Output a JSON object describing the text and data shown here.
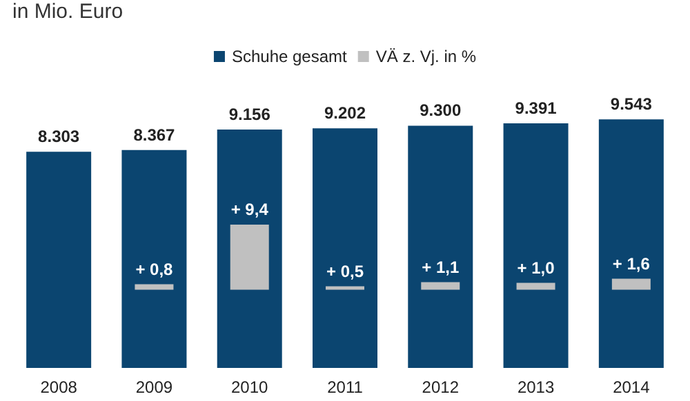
{
  "chart_data": {
    "type": "bar",
    "title": "in Mio. Euro",
    "categories": [
      "2008",
      "2009",
      "2010",
      "2011",
      "2012",
      "2013",
      "2014"
    ],
    "series": [
      {
        "name": "Schuhe gesamt",
        "color": "#0b4570",
        "values": [
          8303,
          8367,
          9156,
          9202,
          9300,
          9391,
          9543
        ],
        "value_labels": [
          "8.303",
          "8.367",
          "9.156",
          "9.202",
          "9.300",
          "9.391",
          "9.543"
        ]
      },
      {
        "name": "VÄ z. Vj. in %",
        "color": "#c0c0c0",
        "axis": "y2",
        "values": [
          null,
          0.8,
          9.4,
          0.5,
          1.1,
          1.0,
          1.6
        ],
        "value_labels": [
          null,
          "+ 0,8",
          "+ 9,4",
          "+ 0,5",
          "+ 1,1",
          "+ 1,0",
          "+ 1,6"
        ]
      }
    ],
    "legend": "top"
  }
}
